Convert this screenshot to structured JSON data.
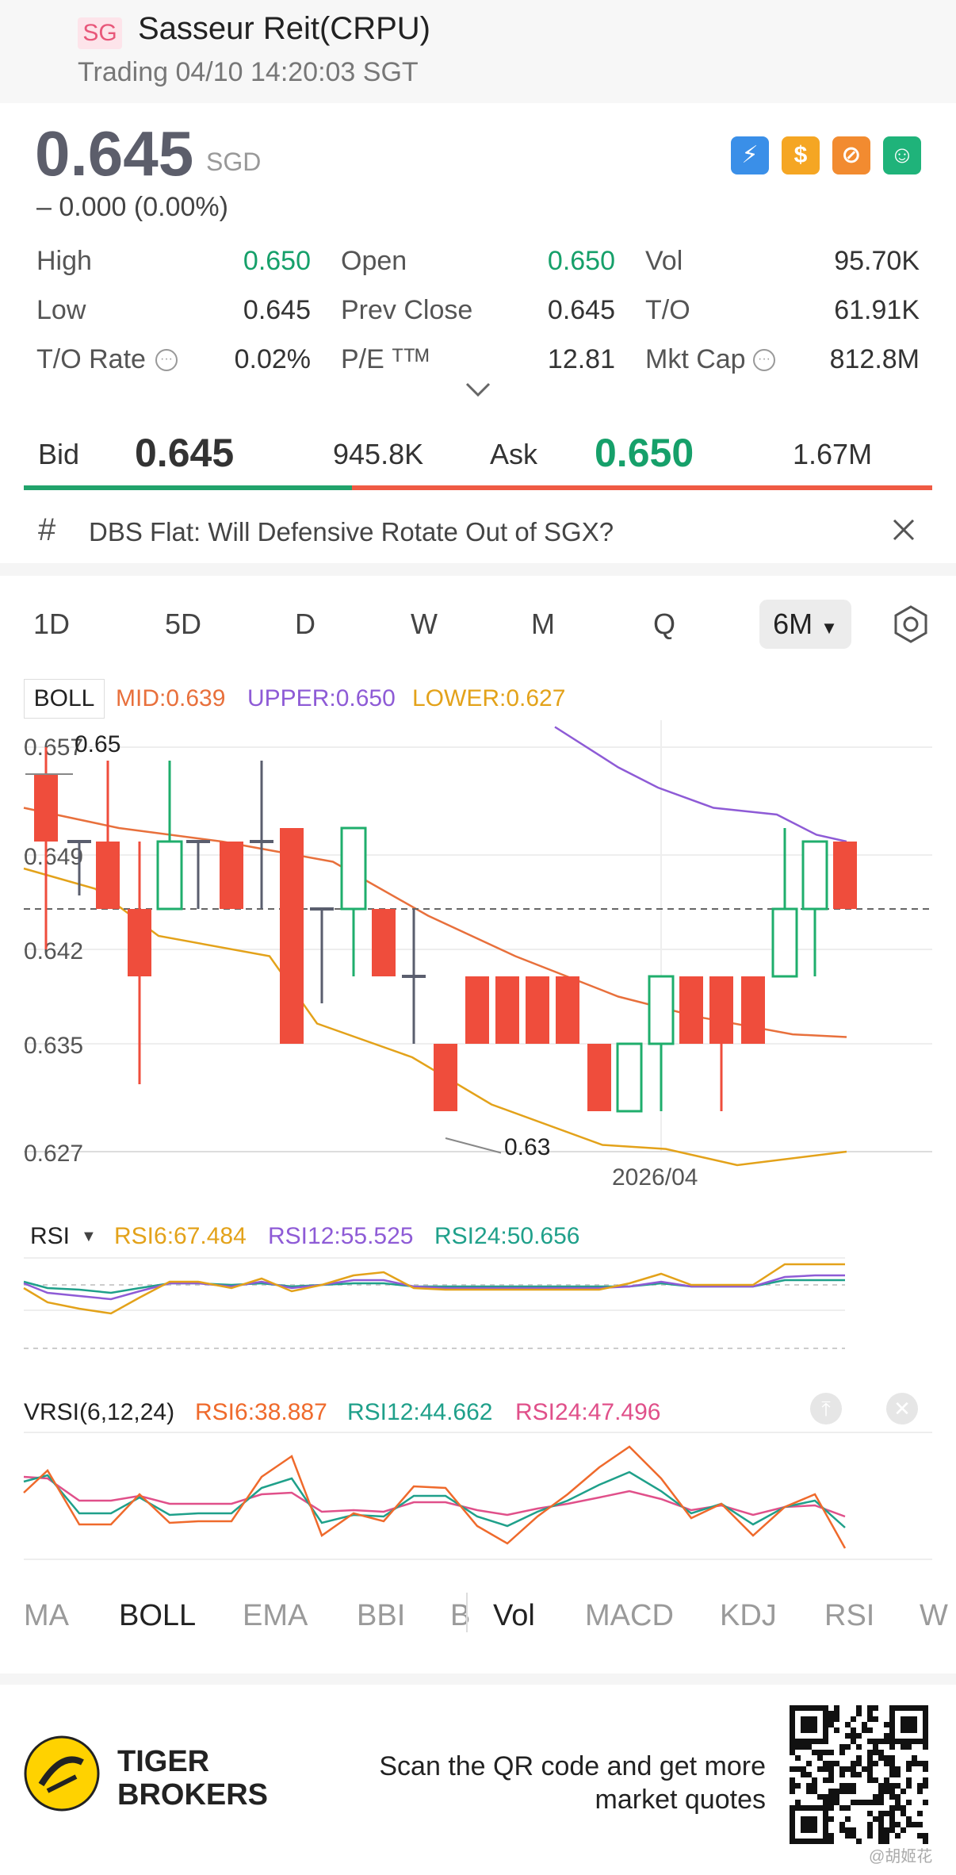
{
  "header": {
    "badge": "SG",
    "title": "Sasseur Reit(CRPU)",
    "subtitle": "Trading 04/10 14:20:03 SGT"
  },
  "quote": {
    "price": "0.645",
    "currency": "SGD",
    "change": "–  0.000 (0.00%)",
    "icons": [
      "lightning-icon",
      "dollar-icon",
      "no-short-icon",
      "cash-hand-icon"
    ],
    "icon_colors": [
      "#3a8fe8",
      "#f5a623",
      "#f28b30",
      "#1fb37a"
    ]
  },
  "stats": [
    {
      "label": "High",
      "value": "0.650",
      "green": true
    },
    {
      "label": "Open",
      "value": "0.650",
      "green": true
    },
    {
      "label": "Vol",
      "value": "95.70K",
      "green": false
    },
    {
      "label": "Low",
      "value": "0.645",
      "green": false
    },
    {
      "label": "Prev Close",
      "value": "0.645",
      "green": false
    },
    {
      "label": "T/O",
      "value": "61.91K",
      "green": false
    },
    {
      "label": "T/O Rate",
      "value": "0.02%",
      "green": false
    },
    {
      "label": "P/E ᵀᵀᴹ",
      "value": "12.81",
      "green": false
    },
    {
      "label": "Mkt Cap",
      "value": "812.8M",
      "green": false
    }
  ],
  "bidask": {
    "bid_label": "Bid",
    "bid": "0.645",
    "bid_size": "945.8K",
    "ask_label": "Ask",
    "ask": "0.650",
    "ask_size": "1.67M"
  },
  "news": {
    "text": "DBS Flat: Will Defensive Rotate Out of SGX?"
  },
  "periods": [
    "1D",
    "5D",
    "D",
    "W",
    "M",
    "Q"
  ],
  "active_period": "6M",
  "boll": {
    "label": "BOLL",
    "mid": "MID:0.639",
    "upper": "UPPER:0.650",
    "lower": "LOWER:0.627",
    "y_ticks": [
      "0.657",
      "0.649",
      "0.642",
      "0.635",
      "0.627"
    ],
    "x_label": "2026/04",
    "high_marker": "0.65",
    "low_marker": "0.63",
    "colors": {
      "up": "#1fae6c",
      "down": "#ef4d3c",
      "flat": "#5a5e6e",
      "mid": "#e8703c",
      "upper": "#8e5bd6",
      "lower": "#e3a21a"
    }
  },
  "rsi": {
    "label": "RSI",
    "rsi6": "RSI6:67.484",
    "rsi12": "RSI12:55.525",
    "rsi24": "RSI24:50.656"
  },
  "vrsi": {
    "label": "VRSI(6,12,24)",
    "rsi6": "RSI6:38.887",
    "rsi12": "RSI12:44.662",
    "rsi24": "RSI24:47.496"
  },
  "indicator_tabs": [
    "MA",
    "BOLL",
    "EMA",
    "BBI",
    "B",
    "Vol",
    "MACD",
    "KDJ",
    "RSI",
    "W"
  ],
  "footer": {
    "brand_line1": "TIGER",
    "brand_line2": "BROKERS",
    "scan_line1": "Scan the QR code and get more",
    "scan_line2": "market quotes",
    "watermark": "@胡姬花"
  }
}
